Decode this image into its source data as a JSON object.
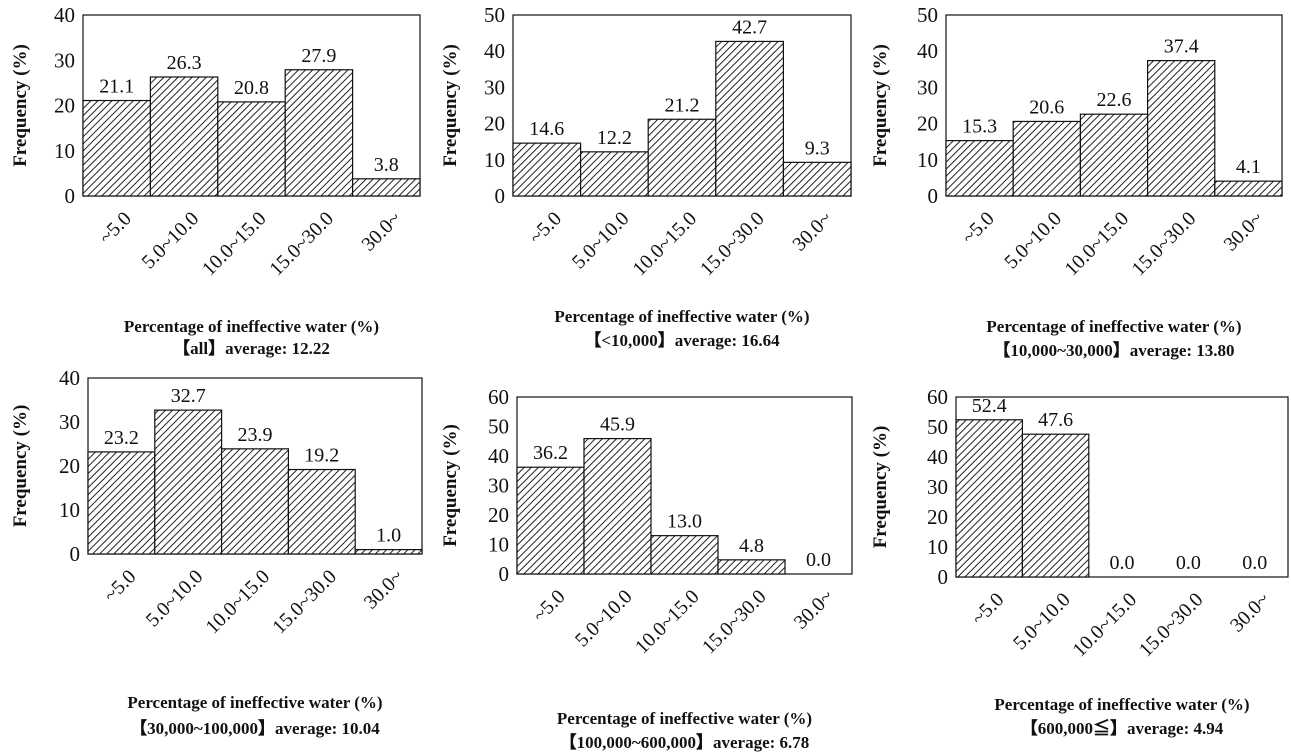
{
  "chart_data": [
    {
      "type": "bar",
      "title": "【all】average: 12.22",
      "xlabel": "Percentage of ineffective water (%)",
      "ylabel": "Frequency (%)",
      "categories": [
        "~5.0",
        "5.0~10.0",
        "10.0~15.0",
        "15.0~30.0",
        "30.0~"
      ],
      "values": [
        21.1,
        26.3,
        20.8,
        27.9,
        3.8
      ],
      "ylim": [
        0,
        40
      ],
      "yticks": [
        0,
        10,
        20,
        30,
        40
      ]
    },
    {
      "type": "bar",
      "title": "【<10,000】average: 16.64",
      "xlabel": "Percentage of ineffective water (%)",
      "ylabel": "Frequency (%)",
      "categories": [
        "~5.0",
        "5.0~10.0",
        "10.0~15.0",
        "15.0~30.0",
        "30.0~"
      ],
      "values": [
        14.6,
        12.2,
        21.2,
        42.7,
        9.3
      ],
      "ylim": [
        0,
        50
      ],
      "yticks": [
        0,
        10,
        20,
        30,
        40,
        50
      ]
    },
    {
      "type": "bar",
      "title": "【10,000~30,000】average: 13.80",
      "xlabel": "Percentage of ineffective water (%)",
      "ylabel": "Frequency (%)",
      "categories": [
        "~5.0",
        "5.0~10.0",
        "10.0~15.0",
        "15.0~30.0",
        "30.0~"
      ],
      "values": [
        15.3,
        20.6,
        22.6,
        37.4,
        4.1
      ],
      "ylim": [
        0,
        50
      ],
      "yticks": [
        0,
        10,
        20,
        30,
        40,
        50
      ]
    },
    {
      "type": "bar",
      "title": "【30,000~100,000】average: 10.04",
      "xlabel": "Percentage of ineffective water (%)",
      "ylabel": "Frequency (%)",
      "categories": [
        "~5.0",
        "5.0~10.0",
        "10.0~15.0",
        "15.0~30.0",
        "30.0~"
      ],
      "values": [
        23.2,
        32.7,
        23.9,
        19.2,
        1.0
      ],
      "ylim": [
        0,
        40
      ],
      "yticks": [
        0,
        10,
        20,
        30,
        40
      ]
    },
    {
      "type": "bar",
      "title": "【100,000~600,000】average: 6.78",
      "xlabel": "Percentage of ineffective water (%)",
      "ylabel": "Frequency (%)",
      "categories": [
        "~5.0",
        "5.0~10.0",
        "10.0~15.0",
        "15.0~30.0",
        "30.0~"
      ],
      "values": [
        36.2,
        45.9,
        13.0,
        4.8,
        0.0
      ],
      "ylim": [
        0,
        60
      ],
      "yticks": [
        0,
        10,
        20,
        30,
        40,
        50,
        60
      ]
    },
    {
      "type": "bar",
      "title": "【600,000≦】average: 4.94",
      "xlabel": "Percentage of ineffective water (%)",
      "ylabel": "Frequency (%)",
      "categories": [
        "~5.0",
        "5.0~10.0",
        "10.0~15.0",
        "15.0~30.0",
        "30.0~"
      ],
      "values": [
        52.4,
        47.6,
        0.0,
        0.0,
        0.0
      ],
      "ylim": [
        0,
        60
      ],
      "yticks": [
        0,
        10,
        20,
        30,
        40,
        50,
        60
      ]
    }
  ]
}
